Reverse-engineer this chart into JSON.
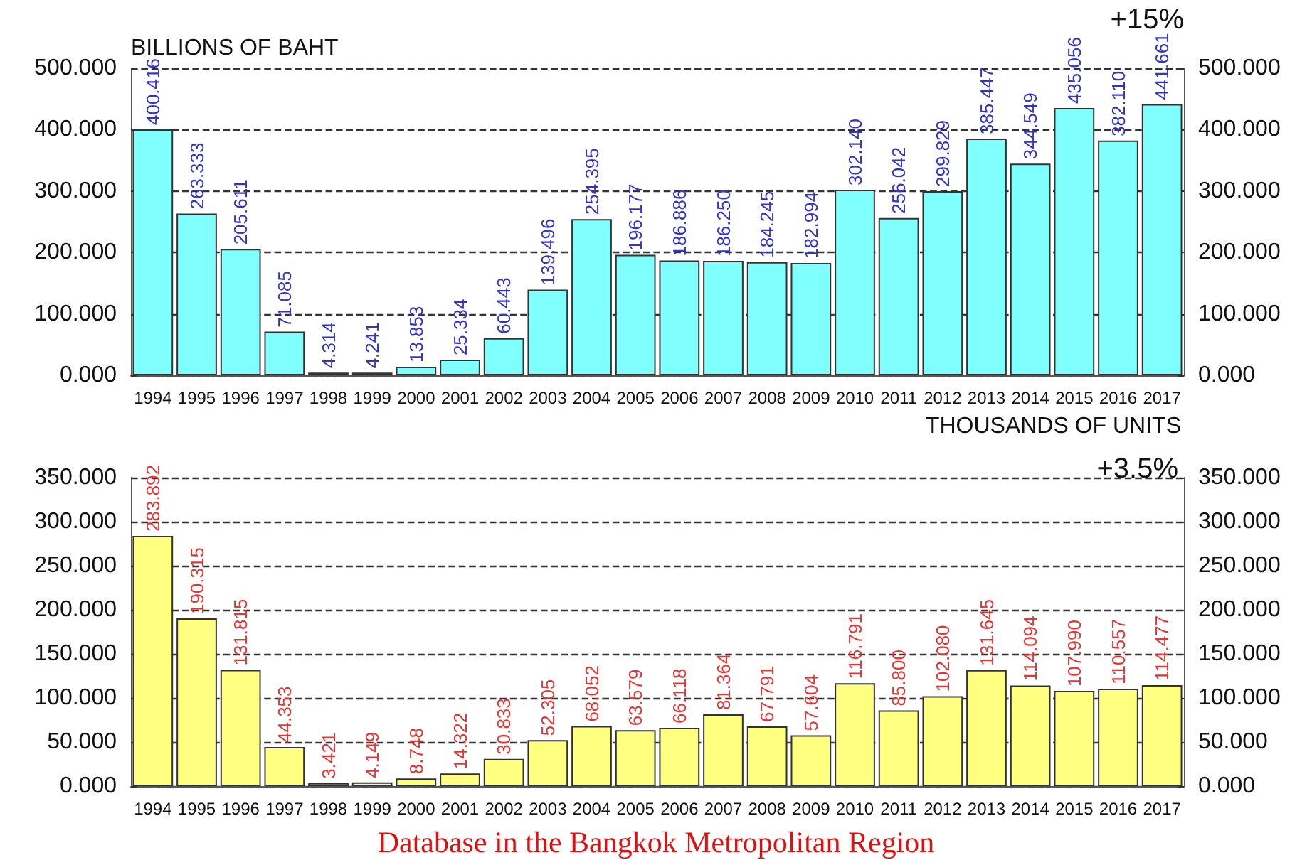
{
  "chart_data": [
    {
      "type": "bar",
      "ylabel": "BILLIONS OF BAHT",
      "annotations": [
        "+15%"
      ],
      "categories": [
        "1994",
        "1995",
        "1996",
        "1997",
        "1998",
        "1999",
        "2000",
        "2001",
        "2002",
        "2003",
        "2004",
        "2005",
        "2006",
        "2007",
        "2008",
        "2009",
        "2010",
        "2011",
        "2012",
        "2013",
        "2014",
        "2015",
        "2016",
        "2017"
      ],
      "series": [
        {
          "color": "#80ffff",
          "values": [
            400.416,
            263.333,
            205.611,
            71.085,
            4.314,
            4.241,
            13.853,
            25.334,
            60.443,
            139.496,
            254.395,
            196.177,
            186.886,
            186.25,
            184.245,
            182.994,
            302.14,
            256.042,
            299.829,
            385.447,
            344.549,
            435.056,
            382.11,
            441.661
          ],
          "value_labels": [
            "400.416",
            "263.333",
            "205.611",
            "71.085",
            "4.314",
            "4.241",
            "13.853",
            "25.334",
            "60.443",
            "139.496",
            "254.395",
            "196.177",
            "186.886",
            "186.250",
            "184.245",
            "182.994",
            "302.140",
            "256.042",
            "299.829",
            "385.447",
            "344.549",
            "435.056",
            "382.110",
            "441.661"
          ]
        }
      ],
      "ylim": [
        0,
        500
      ],
      "yticks": [
        {
          "value": 0,
          "label": "0.000"
        },
        {
          "value": 100,
          "label": "100.000"
        },
        {
          "value": 200,
          "label": "200.000"
        },
        {
          "value": 300,
          "label": "300.000"
        },
        {
          "value": 400,
          "label": "400.000"
        },
        {
          "value": 500,
          "label": "500.000"
        }
      ],
      "y2lim": [
        0,
        500
      ],
      "y2ticks": [
        {
          "value": 0,
          "label": "0.000"
        },
        {
          "value": 100,
          "label": "100.000"
        },
        {
          "value": 200,
          "label": "200.000"
        },
        {
          "value": 300,
          "label": "300.000"
        },
        {
          "value": 400,
          "label": "400.000"
        },
        {
          "value": 500,
          "label": "500.000"
        }
      ],
      "grid": "y"
    },
    {
      "type": "bar",
      "y2label": "THOUSANDS OF UNITS",
      "annotations": [
        "+3.5%",
        "Database in the Bangkok Metropolitan Region"
      ],
      "categories": [
        "1994",
        "1995",
        "1996",
        "1997",
        "1998",
        "1999",
        "2000",
        "2001",
        "2002",
        "2003",
        "2004",
        "2005",
        "2006",
        "2007",
        "2008",
        "2009",
        "2010",
        "2011",
        "2012",
        "2013",
        "2014",
        "2015",
        "2016",
        "2017"
      ],
      "series": [
        {
          "color": "#ffff80",
          "values": [
            283.892,
            190.315,
            131.815,
            44.353,
            3.421,
            4.149,
            8.748,
            14.322,
            30.833,
            52.305,
            68.052,
            63.579,
            66.118,
            81.364,
            67.791,
            57.604,
            116.791,
            85.8,
            102.08,
            131.645,
            114.094,
            107.99,
            110.557,
            114.477
          ],
          "value_labels": [
            "283.892",
            "190.315",
            "131.815",
            "44.353",
            "3.421",
            "4.149",
            "8.748",
            "14.322",
            "30.833",
            "52.305",
            "68.052",
            "63.579",
            "66.118",
            "81.364",
            "67.791",
            "57.604",
            "116.791",
            "85.800",
            "102.080",
            "131.645",
            "114.094",
            "107.990",
            "110.557",
            "114.477"
          ]
        }
      ],
      "ylim": [
        0,
        350
      ],
      "yticks": [
        {
          "value": 0,
          "label": "0.000"
        },
        {
          "value": 50,
          "label": "50.000"
        },
        {
          "value": 100,
          "label": "100.000"
        },
        {
          "value": 150,
          "label": "150.000"
        },
        {
          "value": 200,
          "label": "200.000"
        },
        {
          "value": 250,
          "label": "250.000"
        },
        {
          "value": 300,
          "label": "300.000"
        },
        {
          "value": 350,
          "label": "350.000"
        }
      ],
      "y2lim": [
        0,
        350
      ],
      "y2ticks": [
        {
          "value": 0,
          "label": "0.000"
        },
        {
          "value": 50,
          "label": "50.000"
        },
        {
          "value": 100,
          "label": "100.000"
        },
        {
          "value": 150,
          "label": "150.000"
        },
        {
          "value": 200,
          "label": "200.000"
        },
        {
          "value": 250,
          "label": "250.000"
        },
        {
          "value": 300,
          "label": "300.000"
        },
        {
          "value": 350,
          "label": "350.000"
        }
      ],
      "grid": "y"
    }
  ]
}
